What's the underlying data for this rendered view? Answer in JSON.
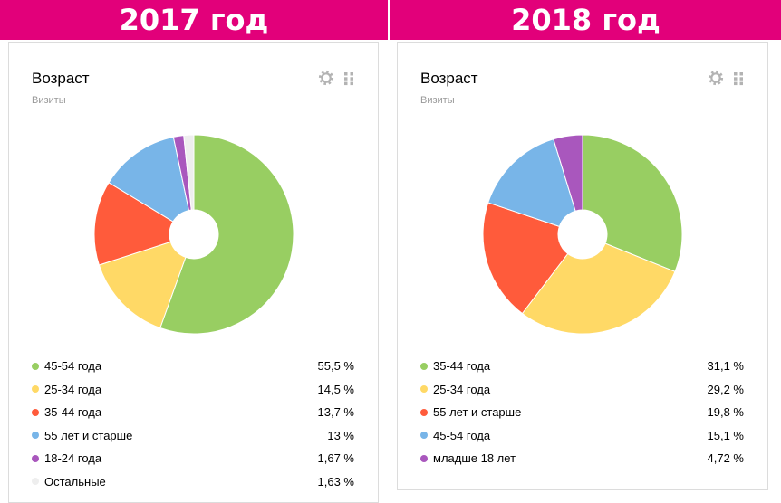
{
  "banners": {
    "left": "2017 год",
    "right": "2018 год"
  },
  "colors": {
    "banner": "#e2007a",
    "green": "#98ce62",
    "yellow": "#ffd966",
    "red": "#ff5b3b",
    "blue": "#78b5e8",
    "purple": "#a957bd",
    "gray": "#eeeeee"
  },
  "widgets": [
    {
      "title": "Возраст",
      "subtitle": "Визиты",
      "icons": [
        "gear-icon",
        "drag-handle-icon"
      ],
      "legend": [
        {
          "label": "45-54 года",
          "value": "55,5 %",
          "color": "#98ce62"
        },
        {
          "label": "25-34 года",
          "value": "14,5 %",
          "color": "#ffd966"
        },
        {
          "label": "35-44 года",
          "value": "13,7 %",
          "color": "#ff5b3b"
        },
        {
          "label": "55 лет и старше",
          "value": "13 %",
          "color": "#78b5e8"
        },
        {
          "label": "18-24 года",
          "value": "1,67 %",
          "color": "#a957bd"
        },
        {
          "label": "Остальные",
          "value": "1,63 %",
          "color": "#eeeeee"
        }
      ]
    },
    {
      "title": "Возраст",
      "subtitle": "Визиты",
      "icons": [
        "gear-icon",
        "drag-handle-icon"
      ],
      "legend": [
        {
          "label": "35-44 года",
          "value": "31,1 %",
          "color": "#98ce62"
        },
        {
          "label": "25-34 года",
          "value": "29,2 %",
          "color": "#ffd966"
        },
        {
          "label": "55 лет и старше",
          "value": "19,8 %",
          "color": "#ff5b3b"
        },
        {
          "label": "45-54 года",
          "value": "15,1 %",
          "color": "#78b5e8"
        },
        {
          "label": "младше 18 лет",
          "value": "4,72 %",
          "color": "#a957bd"
        }
      ]
    }
  ],
  "chart_data": [
    {
      "type": "pie",
      "title": "Возраст",
      "subtitle": "Визиты",
      "categories": [
        "45-54 года",
        "25-34 года",
        "35-44 года",
        "55 лет и старше",
        "18-24 года",
        "Остальные"
      ],
      "values": [
        55.5,
        14.5,
        13.7,
        13,
        1.67,
        1.63
      ],
      "colors": [
        "#98ce62",
        "#ffd966",
        "#ff5b3b",
        "#78b5e8",
        "#a957bd",
        "#eeeeee"
      ]
    },
    {
      "type": "pie",
      "title": "Возраст",
      "subtitle": "Визиты",
      "categories": [
        "35-44 года",
        "25-34 года",
        "55 лет и старше",
        "45-54 года",
        "младше 18 лет"
      ],
      "values": [
        31.1,
        29.2,
        19.8,
        15.1,
        4.72
      ],
      "colors": [
        "#98ce62",
        "#ffd966",
        "#ff5b3b",
        "#78b5e8",
        "#a957bd"
      ]
    }
  ]
}
